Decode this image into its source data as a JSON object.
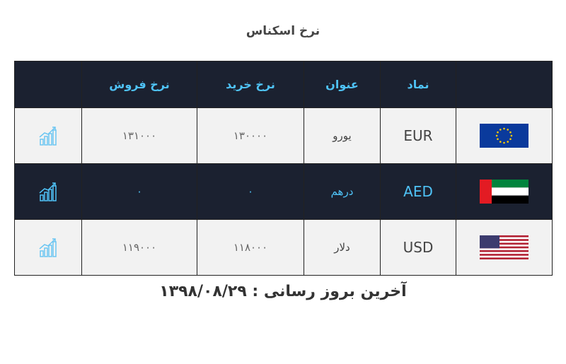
{
  "header": {
    "title": "نرخ اسکناس"
  },
  "table": {
    "columns": [
      "نماد",
      "عنوان",
      "نرخ خرید",
      "نرخ فروش"
    ],
    "rows": [
      [
        "EUR",
        "یورو",
        "۱۳۰۰۰۰",
        "۱۳۱۰۰۰"
      ],
      [
        "AED",
        "درهم",
        "۰",
        "۰"
      ],
      [
        "USD",
        "دلار",
        "۱۱۸۰۰۰",
        "۱۱۹۰۰۰"
      ]
    ]
  },
  "footer": {
    "text": "آخرین بروز رسانی : ۱۳۹۸/۰۸/۲۹"
  }
}
